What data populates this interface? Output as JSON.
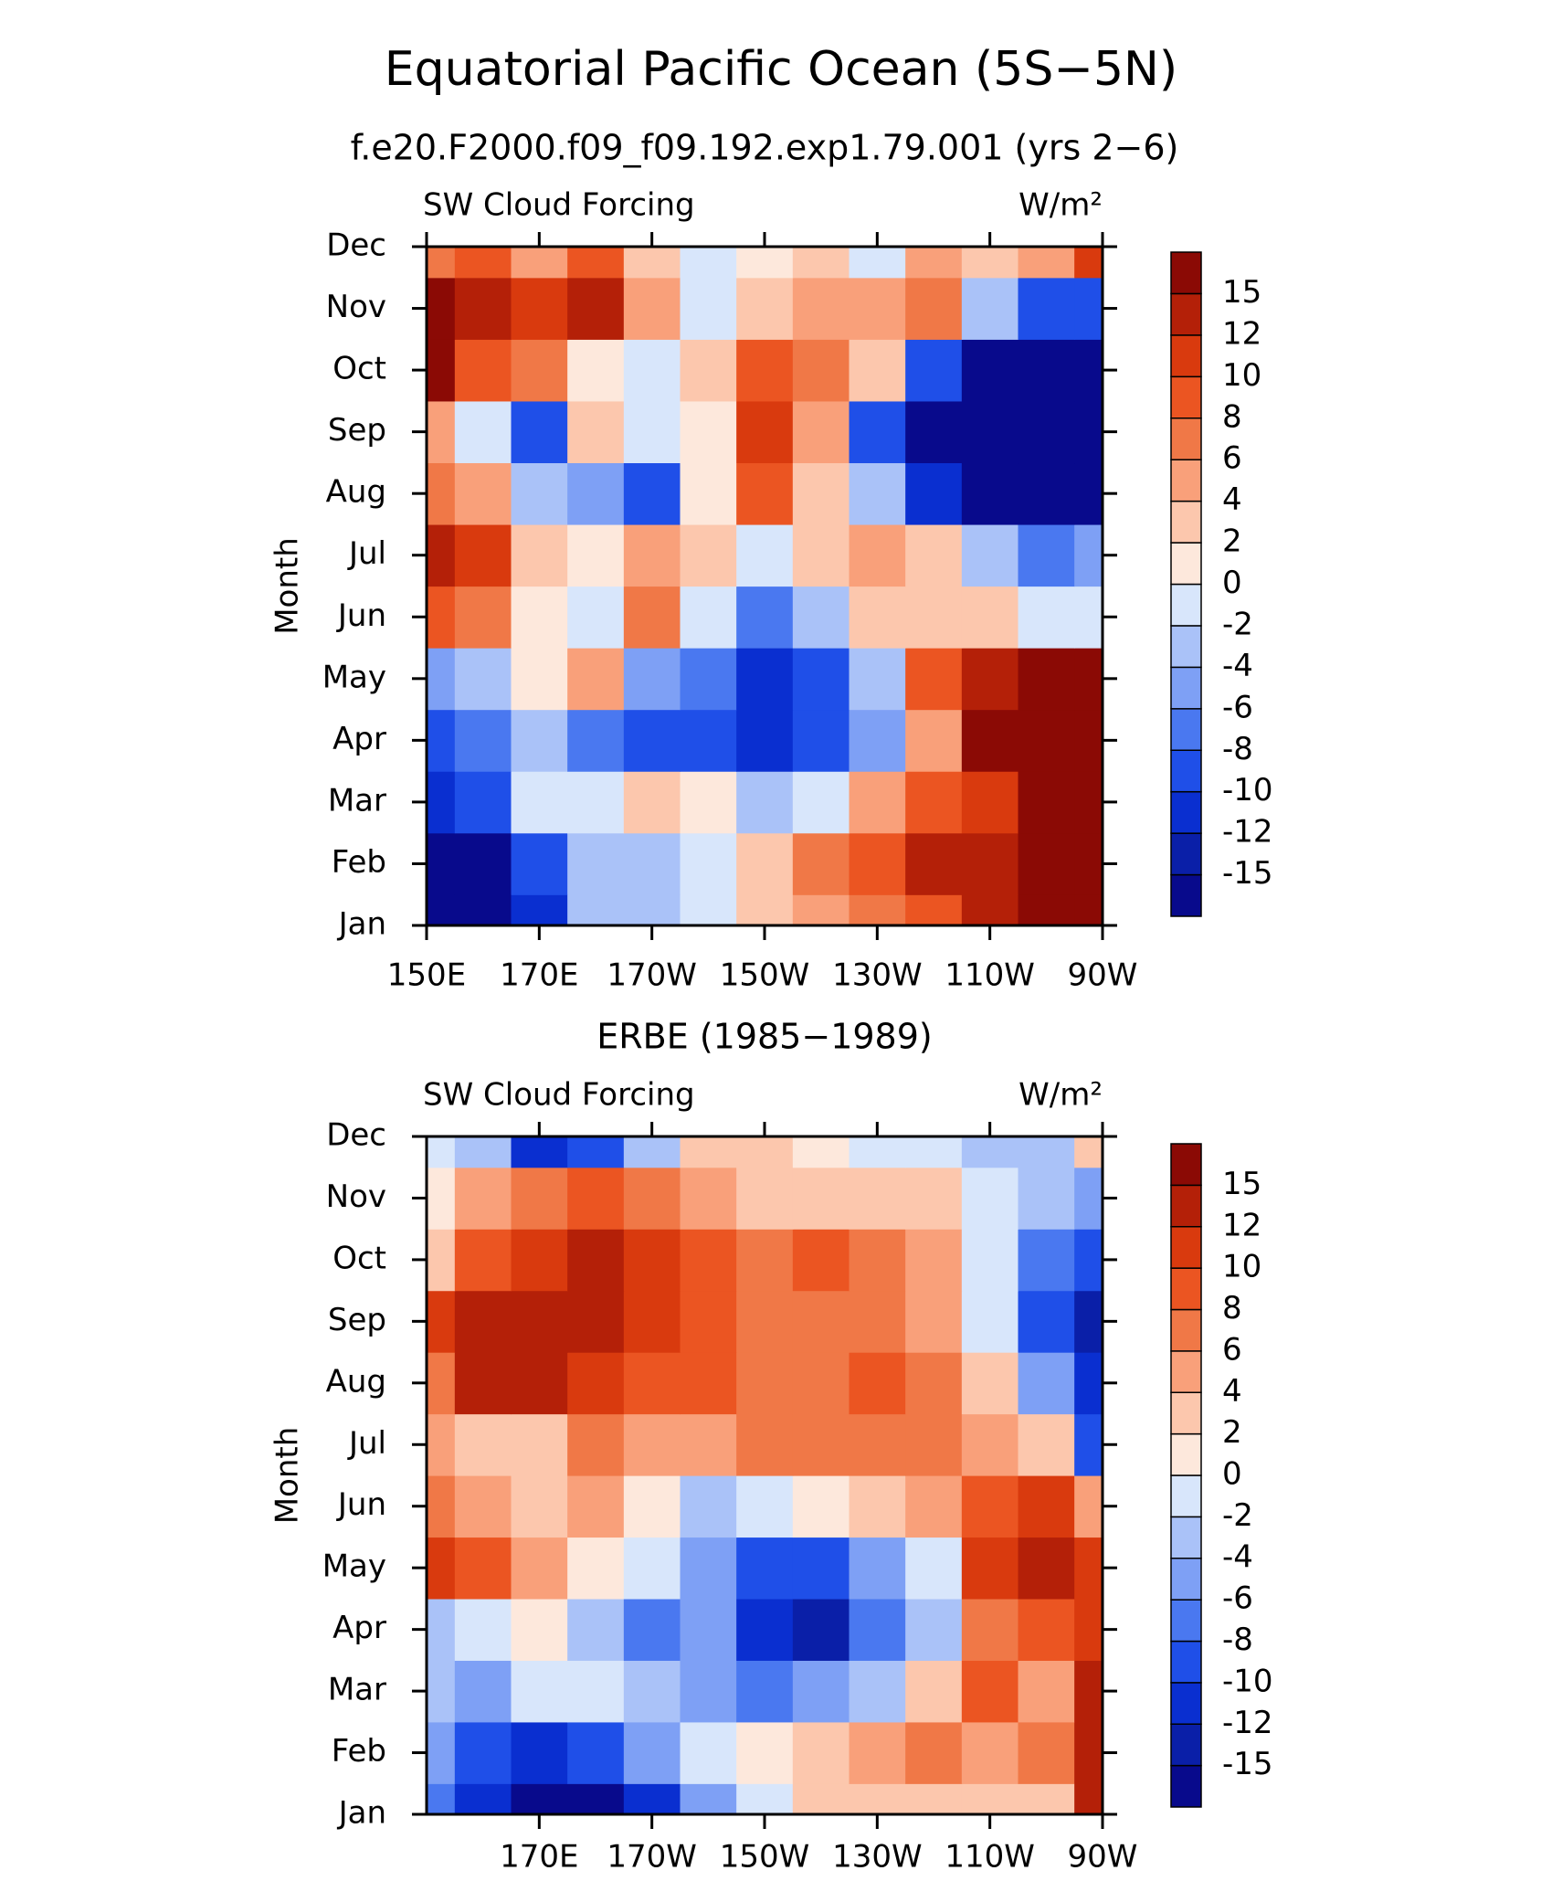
{
  "chart_data": [
    {
      "type": "contour",
      "title": "Equatorial Pacific Ocean (5S−5N)",
      "subtitle": "f.e20.F2000.f09_f09.192.exp1.79.001 (yrs 2−6)",
      "left_string": "SW Cloud Forcing",
      "right_string": "W/m²",
      "y_label": "Month",
      "categories": [
        "Jan",
        "Feb",
        "Mar",
        "Apr",
        "May",
        "Jun",
        "Jul",
        "Aug",
        "Sep",
        "Oct",
        "Nov",
        "Dec"
      ],
      "x": [
        150,
        160,
        170,
        180,
        190,
        200,
        210,
        220,
        230,
        240,
        250,
        260,
        270
      ],
      "xlim": [
        150,
        270
      ],
      "xticks": [
        {
          "value": 150,
          "label": "150E"
        },
        {
          "value": 170,
          "label": "170E"
        },
        {
          "value": 190,
          "label": "170W"
        },
        {
          "value": 210,
          "label": "150W"
        },
        {
          "value": 230,
          "label": "130W"
        },
        {
          "value": 250,
          "label": "110W"
        },
        {
          "value": 270,
          "label": "90W"
        }
      ],
      "z": [
        [
          -16,
          -16,
          -12,
          -4,
          -4,
          -2,
          2,
          4,
          6,
          8,
          12,
          16,
          16
        ],
        [
          -16,
          -16,
          -10,
          -4,
          -4,
          -2,
          2,
          6,
          8,
          12,
          12,
          16,
          16
        ],
        [
          -12,
          -10,
          -2,
          -2,
          2,
          0,
          -4,
          -2,
          4,
          8,
          10,
          16,
          16
        ],
        [
          -10,
          -8,
          -4,
          -8,
          -10,
          -10,
          -12,
          -10,
          -6,
          4,
          16,
          16,
          16
        ],
        [
          -6,
          -4,
          0,
          4,
          -6,
          -8,
          -12,
          -10,
          -4,
          8,
          12,
          16,
          16
        ],
        [
          8,
          6,
          0,
          -2,
          6,
          -2,
          -8,
          -4,
          2,
          2,
          2,
          -2,
          -2
        ],
        [
          14,
          10,
          2,
          0,
          4,
          2,
          -2,
          2,
          4,
          2,
          -4,
          -8,
          -6
        ],
        [
          6,
          4,
          -4,
          -6,
          -10,
          0,
          8,
          2,
          -4,
          -12,
          -16,
          -16,
          -16
        ],
        [
          4,
          -2,
          -10,
          2,
          -2,
          0,
          10,
          4,
          -10,
          -16,
          -16,
          -16,
          -16
        ],
        [
          16,
          8,
          6,
          0,
          -2,
          2,
          8,
          6,
          2,
          -10,
          -16,
          -16,
          -16
        ],
        [
          16,
          12,
          10,
          12,
          4,
          -2,
          2,
          4,
          4,
          6,
          -4,
          -10,
          -10
        ],
        [
          6,
          8,
          4,
          8,
          2,
          -2,
          0,
          2,
          -2,
          4,
          2,
          4,
          10
        ]
      ],
      "levels": [
        -15,
        -12,
        -10,
        -8,
        -6,
        -4,
        -2,
        0,
        2,
        4,
        6,
        8,
        10,
        12,
        15
      ],
      "colors": [
        "#080a8c",
        "#0a1fa8",
        "#0a2fd0",
        "#1f4fe8",
        "#4a78f0",
        "#7ea0f5",
        "#aac2f8",
        "#d8e6fb",
        "#fde8dc",
        "#fcc7ad",
        "#f9a07a",
        "#f07847",
        "#eb5522",
        "#d93a0e",
        "#b42008",
        "#8b0a05"
      ]
    },
    {
      "type": "contour",
      "title": "ERBE (1985−1989)",
      "left_string": "SW Cloud Forcing",
      "right_string": "W/m²",
      "y_label": "Month",
      "categories": [
        "Jan",
        "Feb",
        "Mar",
        "Apr",
        "May",
        "Jun",
        "Jul",
        "Aug",
        "Sep",
        "Oct",
        "Nov",
        "Dec"
      ],
      "x": [
        150,
        160,
        170,
        180,
        190,
        200,
        210,
        220,
        230,
        240,
        250,
        260,
        270
      ],
      "xlim": [
        150,
        270
      ],
      "xticks": [
        {
          "value": 170,
          "label": "170E"
        },
        {
          "value": 190,
          "label": "170W"
        },
        {
          "value": 210,
          "label": "150W"
        },
        {
          "value": 230,
          "label": "130W"
        },
        {
          "value": 250,
          "label": "110W"
        },
        {
          "value": 270,
          "label": "90W"
        }
      ],
      "z": [
        [
          -8,
          -12,
          -16,
          -16,
          -12,
          -6,
          -2,
          2,
          2,
          2,
          2,
          2,
          12
        ],
        [
          -6,
          -10,
          -12,
          -10,
          -6,
          -2,
          0,
          2,
          4,
          6,
          4,
          6,
          14
        ],
        [
          -4,
          -6,
          -2,
          -2,
          -4,
          -6,
          -8,
          -6,
          -4,
          2,
          8,
          4,
          12
        ],
        [
          -4,
          -2,
          0,
          -4,
          -8,
          -6,
          -12,
          -14,
          -8,
          -4,
          6,
          8,
          10
        ],
        [
          10,
          8,
          4,
          0,
          -2,
          -6,
          -10,
          -10,
          -6,
          -2,
          10,
          12,
          10
        ],
        [
          6,
          4,
          2,
          4,
          0,
          -4,
          -2,
          0,
          2,
          4,
          8,
          10,
          4
        ],
        [
          4,
          2,
          2,
          6,
          4,
          4,
          6,
          6,
          6,
          6,
          4,
          2,
          -10
        ],
        [
          6,
          12,
          12,
          10,
          8,
          8,
          6,
          6,
          8,
          6,
          2,
          -6,
          -12
        ],
        [
          10,
          14,
          12,
          14,
          10,
          8,
          6,
          6,
          6,
          4,
          -2,
          -10,
          -14
        ],
        [
          2,
          8,
          10,
          12,
          10,
          8,
          6,
          8,
          6,
          4,
          -2,
          -8,
          -10
        ],
        [
          0,
          4,
          6,
          8,
          6,
          4,
          2,
          2,
          2,
          2,
          -2,
          -4,
          -6
        ],
        [
          -2,
          -4,
          -12,
          -10,
          -4,
          2,
          2,
          0,
          -2,
          -2,
          -4,
          -4,
          2
        ]
      ],
      "levels": [
        -15,
        -12,
        -10,
        -8,
        -6,
        -4,
        -2,
        0,
        2,
        4,
        6,
        8,
        10,
        12,
        15
      ],
      "colors": [
        "#080a8c",
        "#0a1fa8",
        "#0a2fd0",
        "#1f4fe8",
        "#4a78f0",
        "#7ea0f5",
        "#aac2f8",
        "#d8e6fb",
        "#fde8dc",
        "#fcc7ad",
        "#f9a07a",
        "#f07847",
        "#eb5522",
        "#d93a0e",
        "#b42008",
        "#8b0a05"
      ]
    }
  ]
}
